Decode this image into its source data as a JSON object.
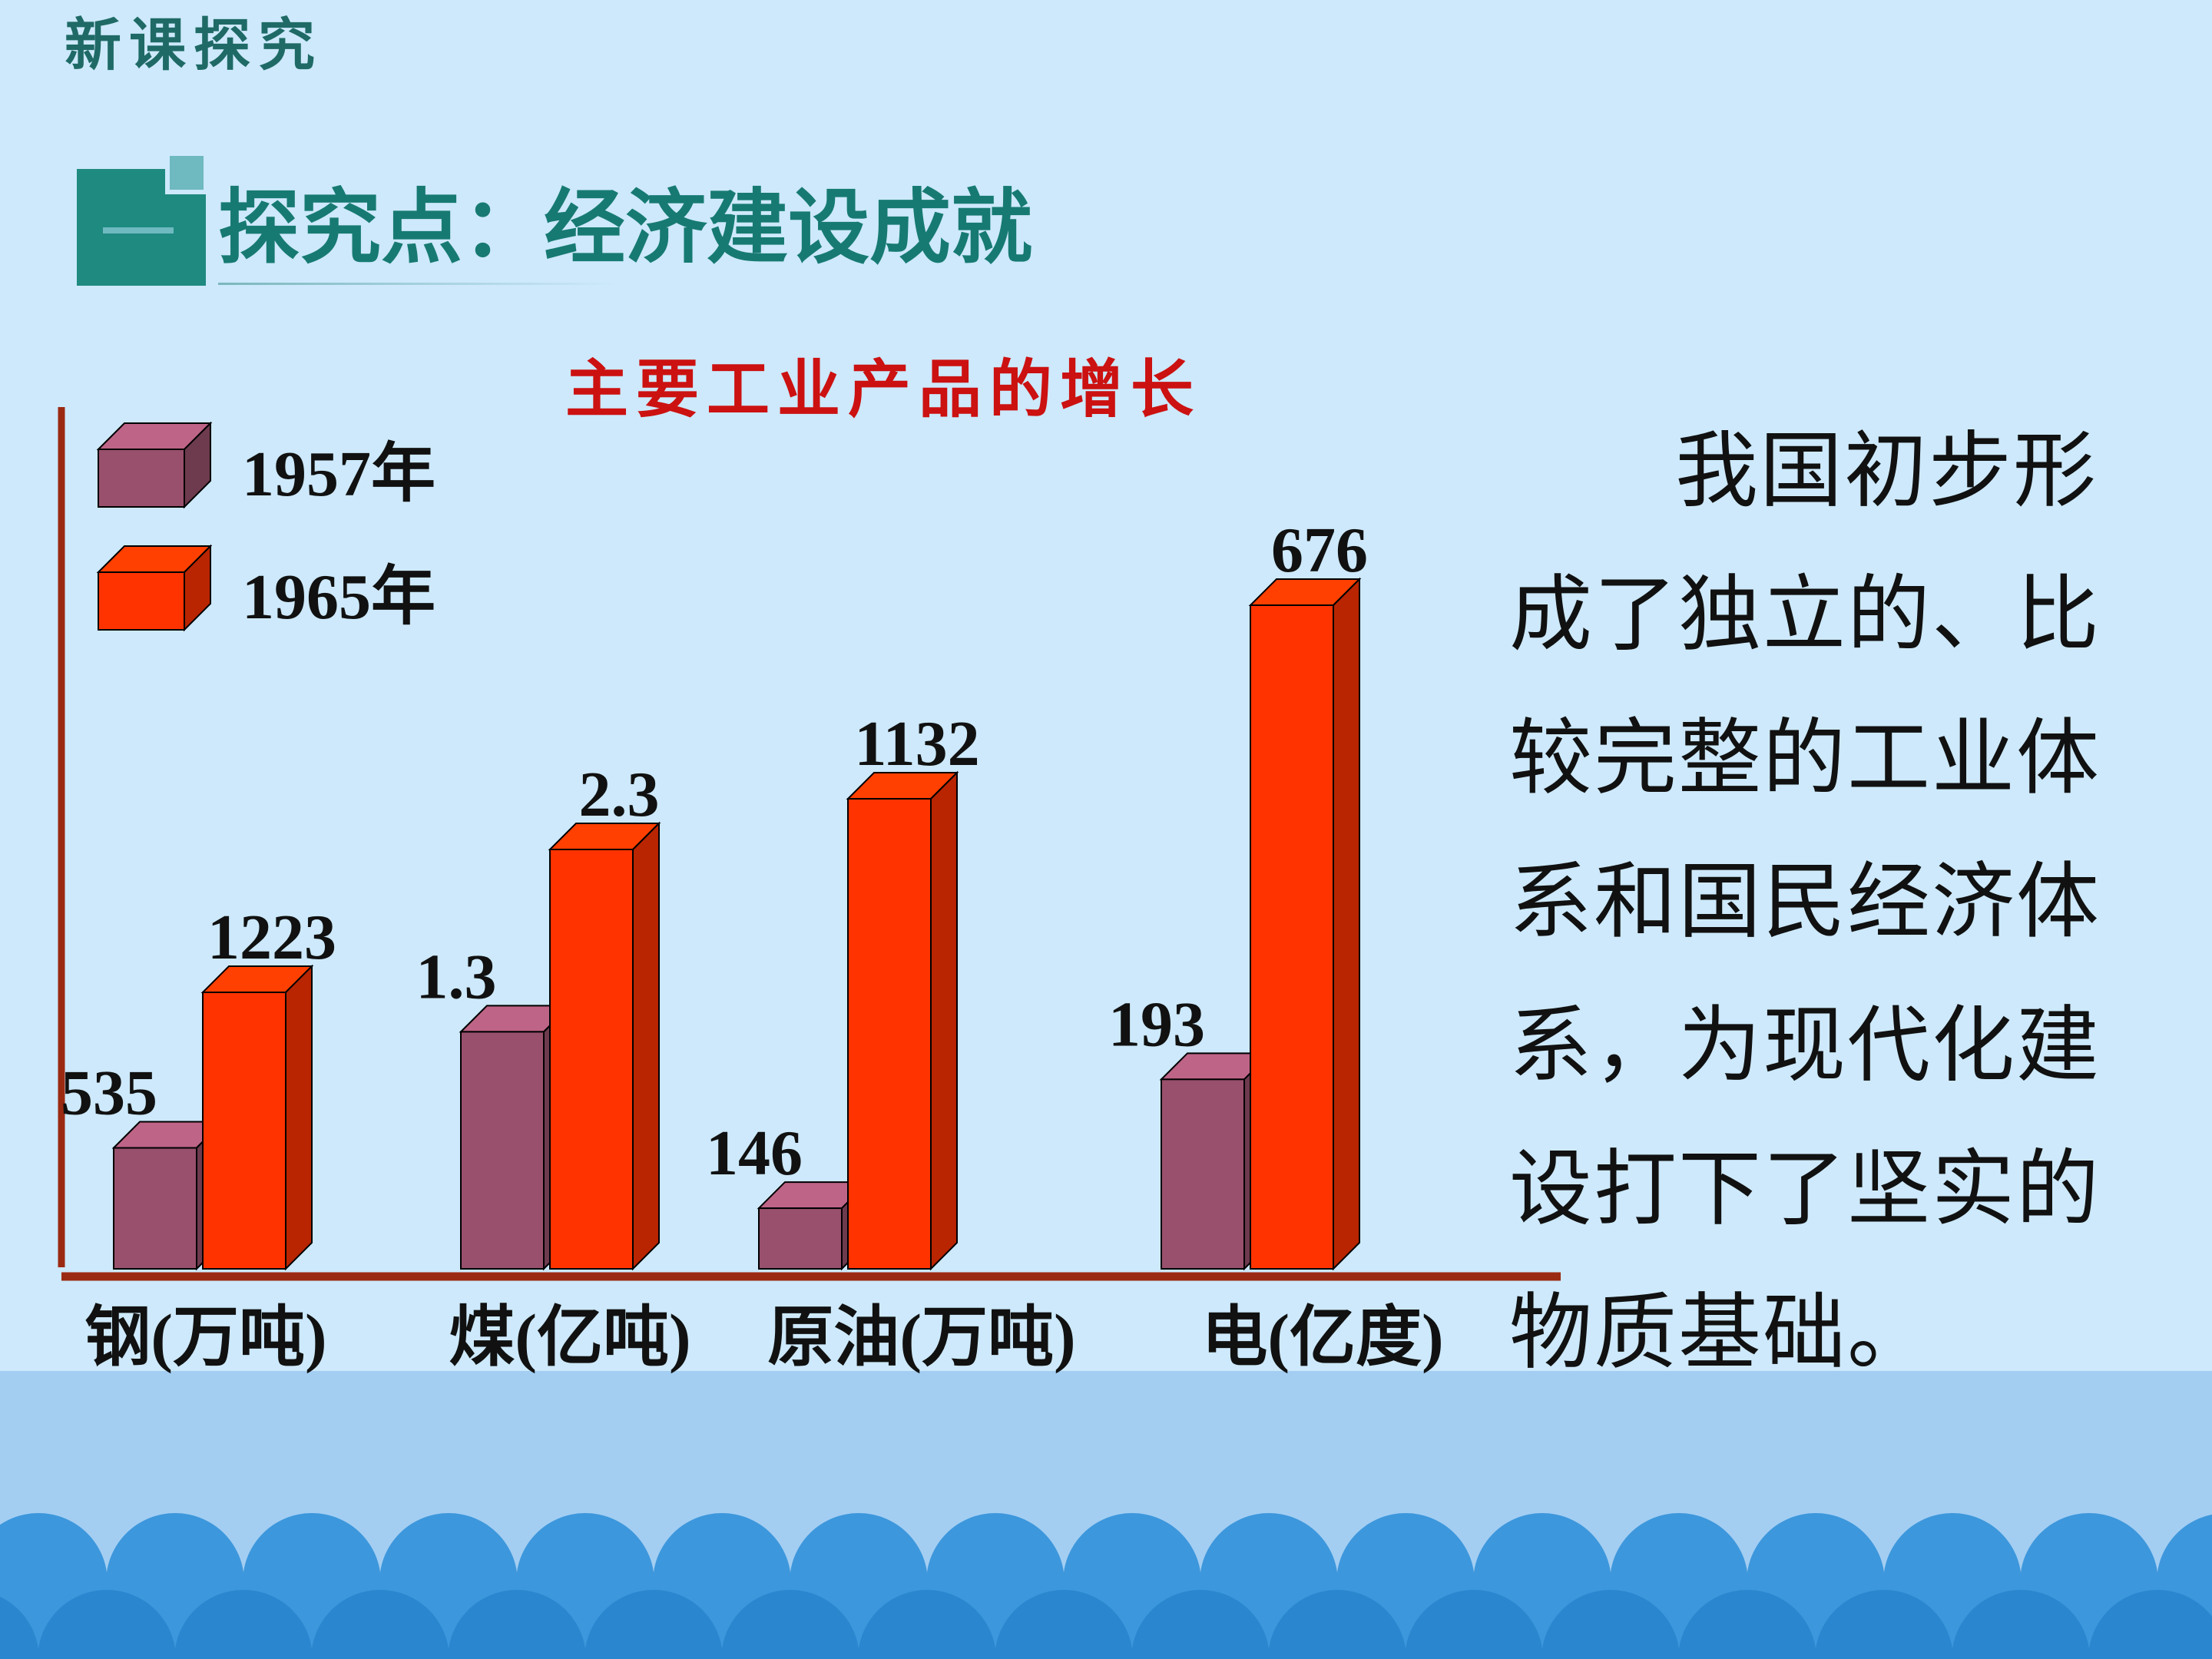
{
  "slide": {
    "header": "新课探究",
    "section_title": "探究点：经济建设成就",
    "body_text": "我国初步形成了独立的、比较完整的工业体系和国民经济体系，为现代化建设打下了坚实的物质基础。"
  },
  "colors": {
    "background": "#cde9fb",
    "wave_band": "#a3cef2",
    "scale_dark": "#2a86cf",
    "scale_light": "#3d97dc",
    "icon_teal": "#1f8a80",
    "icon_light": "#6fb9c0",
    "title_teal": "#177a72",
    "chart_title": "#cc1111",
    "series_1957": "#98506c",
    "series_1965": "#ff3300",
    "axis": "#9b2a12"
  },
  "icons": {
    "section_icon": "teal-square-with-dash-icon",
    "legend_1957": "cube-swatch-icon",
    "legend_1965": "cube-swatch-icon"
  },
  "chart_data": {
    "type": "bar",
    "style": "3d-clustered-bar",
    "title": "主要工业产品的增长",
    "categories": [
      "钢(万吨)",
      "煤(亿吨)",
      "原油(万吨)",
      "电(亿度)"
    ],
    "series": [
      {
        "name": "1957年",
        "labels": [
          "535",
          "1.3",
          "146",
          "193"
        ],
        "values": [
          535,
          1.3,
          146,
          193
        ]
      },
      {
        "name": "1965年",
        "labels": [
          "1223",
          "2.3",
          "1132",
          "676"
        ],
        "values": [
          1223,
          2.3,
          1132,
          676
        ]
      }
    ],
    "scale_note": "each category has its own unit; bars are drawn per-category",
    "grid": false,
    "legend_position": "top-left"
  }
}
